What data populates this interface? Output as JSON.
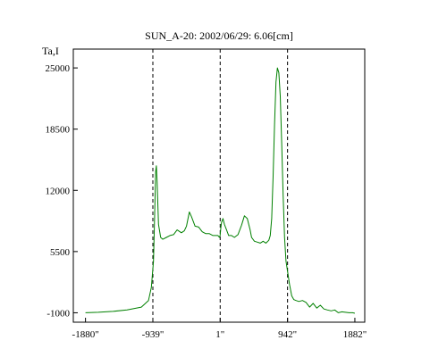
{
  "chart_data": {
    "type": "line",
    "title": "SUN_A-20: 2002/06/29: 6.06[cm]",
    "ylabel": "Ta,I",
    "xlabel": "",
    "xlim": [
      -2050,
      2020
    ],
    "ylim": [
      -2000,
      27000
    ],
    "xticks": [
      -1880,
      -939,
      1,
      942,
      1882
    ],
    "xtick_labels": [
      "-1880\"",
      "-939\"",
      "1\"",
      "942\"",
      "1882\""
    ],
    "yticks": [
      -1000,
      5500,
      12000,
      18500,
      25000
    ],
    "ytick_labels": [
      "-1000",
      "5500",
      "12000",
      "18500",
      "25000"
    ],
    "vlines": [
      -939,
      1,
      942
    ],
    "grid": false,
    "colors": {
      "line": "#008000",
      "axes": "#000000",
      "guides": "#000000"
    },
    "series": [
      {
        "x": [
          -1880,
          -1700,
          -1500,
          -1300,
          -1100,
          -1000,
          -960,
          -930,
          -915,
          -900,
          -890,
          -880,
          -860,
          -830,
          -800,
          -750,
          -700,
          -650,
          -600,
          -540,
          -500,
          -470,
          -430,
          -400,
          -350,
          -300,
          -250,
          -200,
          -150,
          -100,
          -60,
          -30,
          -10,
          0,
          10,
          20,
          40,
          60,
          90,
          120,
          160,
          200,
          250,
          300,
          340,
          380,
          400,
          420,
          440,
          480,
          520,
          560,
          600,
          640,
          680,
          700,
          720,
          740,
          760,
          780,
          800,
          820,
          840,
          860,
          880,
          900,
          920,
          940,
          970,
          1000,
          1030,
          1060,
          1100,
          1150,
          1200,
          1250,
          1300,
          1350,
          1400,
          1450,
          1500,
          1550,
          1600,
          1650,
          1700,
          1750,
          1800,
          1850,
          1882
        ],
        "y": [
          -1000,
          -950,
          -850,
          -700,
          -400,
          300,
          1700,
          4500,
          9000,
          14000,
          14600,
          13000,
          8400,
          7000,
          6800,
          7000,
          7200,
          7300,
          7800,
          7500,
          7700,
          8200,
          9700,
          9200,
          8200,
          8100,
          7600,
          7400,
          7400,
          7200,
          7200,
          7200,
          7000,
          7200,
          8000,
          8600,
          9000,
          8400,
          7800,
          7200,
          7200,
          7000,
          7300,
          8300,
          9300,
          9000,
          8400,
          7800,
          7000,
          6600,
          6500,
          6400,
          6600,
          6400,
          6700,
          7200,
          9000,
          13500,
          19000,
          23500,
          25000,
          24500,
          22000,
          17000,
          11500,
          7000,
          4500,
          3500,
          2000,
          800,
          400,
          300,
          200,
          300,
          100,
          -400,
          0,
          -500,
          -200,
          -600,
          -700,
          -800,
          -700,
          -1000,
          -900,
          -950,
          -1000,
          -1000,
          -1050
        ]
      }
    ]
  }
}
